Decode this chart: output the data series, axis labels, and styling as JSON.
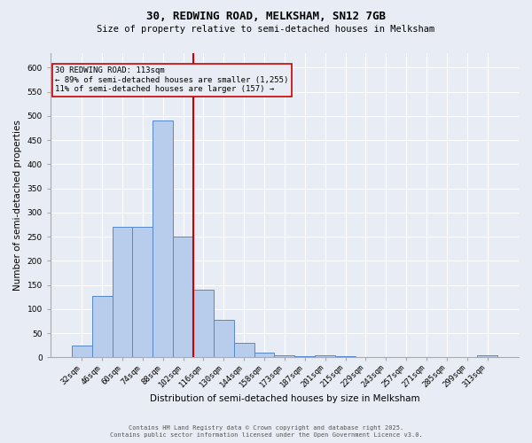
{
  "title1": "30, REDWING ROAD, MELKSHAM, SN12 7GB",
  "title2": "Size of property relative to semi-detached houses in Melksham",
  "xlabel": "Distribution of semi-detached houses by size in Melksham",
  "ylabel": "Number of semi-detached properties",
  "categories": [
    "32sqm",
    "46sqm",
    "60sqm",
    "74sqm",
    "88sqm",
    "102sqm",
    "116sqm",
    "130sqm",
    "144sqm",
    "158sqm",
    "173sqm",
    "187sqm",
    "201sqm",
    "215sqm",
    "229sqm",
    "243sqm",
    "257sqm",
    "271sqm",
    "285sqm",
    "299sqm",
    "313sqm"
  ],
  "values": [
    25,
    128,
    270,
    270,
    490,
    250,
    140,
    78,
    30,
    10,
    5,
    3,
    5,
    3,
    1,
    1,
    1,
    1,
    1,
    1,
    4
  ],
  "bar_color": "#b8ccec",
  "bar_edge_color": "#5588cc",
  "background_color": "#e8edf5",
  "grid_color": "#ffffff",
  "vline_x": 5.5,
  "vline_color": "#cc0000",
  "property_label": "30 REDWING ROAD: 113sqm",
  "smaller_text": "← 89% of semi-detached houses are smaller (1,255)",
  "larger_text": "11% of semi-detached houses are larger (157) →",
  "annotation_box_color": "#cc0000",
  "footnote1": "Contains HM Land Registry data © Crown copyright and database right 2025.",
  "footnote2": "Contains public sector information licensed under the Open Government Licence v3.0.",
  "ylim": [
    0,
    630
  ],
  "yticks": [
    0,
    50,
    100,
    150,
    200,
    250,
    300,
    350,
    400,
    450,
    500,
    550,
    600
  ]
}
